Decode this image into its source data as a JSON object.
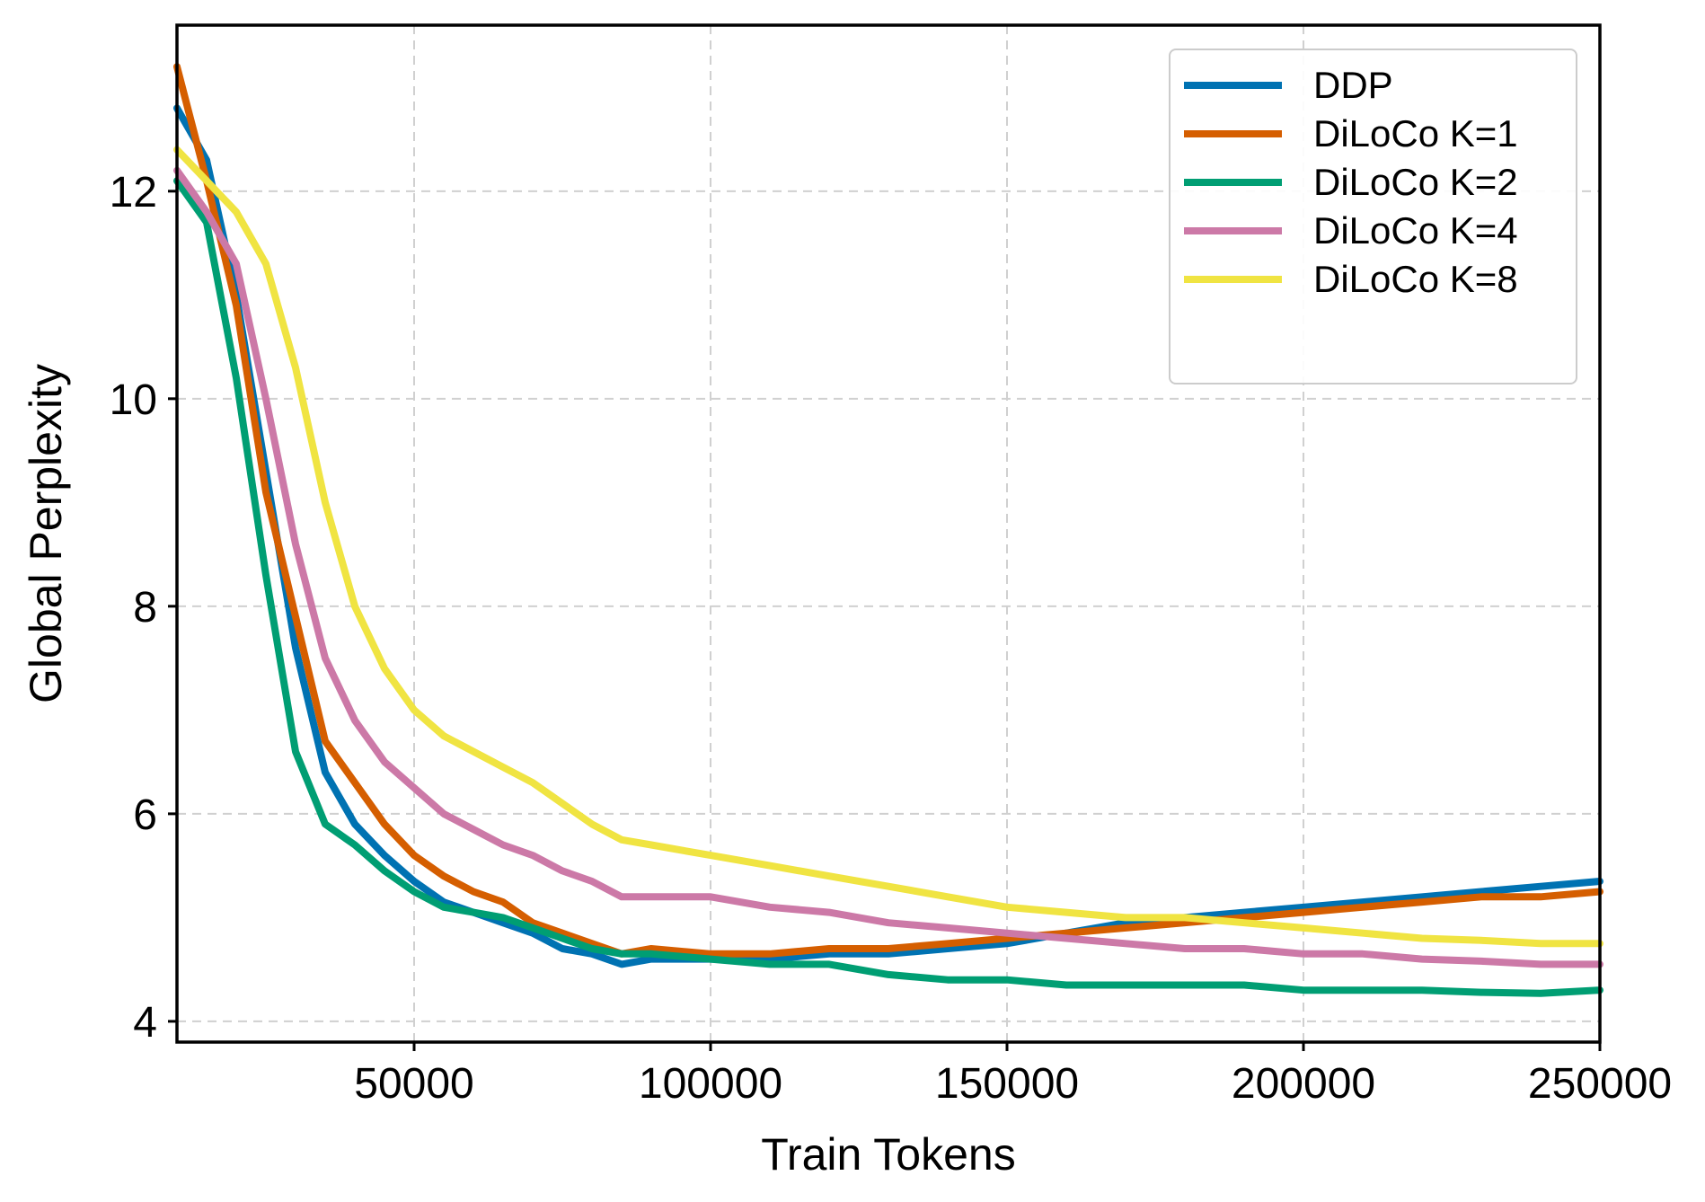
{
  "chart_data": {
    "type": "line",
    "xlabel": "Train Tokens",
    "ylabel": "Global Perplexity",
    "xlim": [
      10000,
      250000
    ],
    "ylim": [
      3.8,
      13.6
    ],
    "xticks": [
      50000,
      100000,
      150000,
      200000,
      250000
    ],
    "yticks": [
      4,
      6,
      8,
      10,
      12
    ],
    "grid": true,
    "legend_position": "top-right",
    "series": [
      {
        "name": "DDP",
        "color": "#0072B2",
        "x": [
          10000,
          15000,
          20000,
          25000,
          30000,
          35000,
          40000,
          45000,
          50000,
          55000,
          60000,
          65000,
          70000,
          75000,
          80000,
          85000,
          90000,
          100000,
          110000,
          120000,
          130000,
          140000,
          150000,
          160000,
          170000,
          180000,
          190000,
          200000,
          210000,
          220000,
          230000,
          240000,
          250000
        ],
        "y": [
          12.8,
          12.3,
          11.0,
          9.3,
          7.6,
          6.4,
          5.9,
          5.6,
          5.35,
          5.15,
          5.05,
          4.95,
          4.85,
          4.7,
          4.65,
          4.55,
          4.6,
          4.6,
          4.6,
          4.65,
          4.65,
          4.7,
          4.75,
          4.85,
          4.95,
          5.0,
          5.05,
          5.1,
          5.15,
          5.2,
          5.25,
          5.3,
          5.35
        ]
      },
      {
        "name": "DiLoCo K=1",
        "color": "#D55E00",
        "x": [
          10000,
          15000,
          20000,
          25000,
          30000,
          35000,
          40000,
          45000,
          50000,
          55000,
          60000,
          65000,
          70000,
          75000,
          80000,
          85000,
          90000,
          100000,
          110000,
          120000,
          130000,
          140000,
          150000,
          160000,
          170000,
          180000,
          190000,
          200000,
          210000,
          220000,
          230000,
          240000,
          250000
        ],
        "y": [
          13.2,
          12.1,
          10.9,
          9.1,
          7.9,
          6.7,
          6.3,
          5.9,
          5.6,
          5.4,
          5.25,
          5.15,
          4.95,
          4.85,
          4.75,
          4.65,
          4.7,
          4.65,
          4.65,
          4.7,
          4.7,
          4.75,
          4.8,
          4.85,
          4.9,
          4.95,
          5.0,
          5.05,
          5.1,
          5.15,
          5.2,
          5.2,
          5.25
        ]
      },
      {
        "name": "DiLoCo K=2",
        "color": "#009E73",
        "x": [
          10000,
          15000,
          20000,
          25000,
          30000,
          35000,
          40000,
          45000,
          50000,
          55000,
          60000,
          65000,
          70000,
          75000,
          80000,
          85000,
          90000,
          100000,
          110000,
          120000,
          130000,
          140000,
          150000,
          160000,
          170000,
          180000,
          190000,
          200000,
          210000,
          220000,
          230000,
          240000,
          250000
        ],
        "y": [
          12.1,
          11.7,
          10.2,
          8.3,
          6.6,
          5.9,
          5.7,
          5.45,
          5.25,
          5.1,
          5.05,
          5.0,
          4.9,
          4.8,
          4.7,
          4.65,
          4.65,
          4.6,
          4.55,
          4.55,
          4.45,
          4.4,
          4.4,
          4.35,
          4.35,
          4.35,
          4.35,
          4.3,
          4.3,
          4.3,
          4.28,
          4.27,
          4.3
        ]
      },
      {
        "name": "DiLoCo K=4",
        "color": "#CC79A7",
        "x": [
          10000,
          15000,
          20000,
          25000,
          30000,
          35000,
          40000,
          45000,
          50000,
          55000,
          60000,
          65000,
          70000,
          75000,
          80000,
          85000,
          90000,
          100000,
          110000,
          120000,
          130000,
          140000,
          150000,
          160000,
          170000,
          180000,
          190000,
          200000,
          210000,
          220000,
          230000,
          240000,
          250000
        ],
        "y": [
          12.2,
          11.8,
          11.3,
          10.0,
          8.6,
          7.5,
          6.9,
          6.5,
          6.25,
          6.0,
          5.85,
          5.7,
          5.6,
          5.45,
          5.35,
          5.2,
          5.2,
          5.2,
          5.1,
          5.05,
          4.95,
          4.9,
          4.85,
          4.8,
          4.75,
          4.7,
          4.7,
          4.65,
          4.65,
          4.6,
          4.58,
          4.55,
          4.55
        ]
      },
      {
        "name": "DiLoCo K=8",
        "color": "#F0E442",
        "x": [
          10000,
          15000,
          20000,
          25000,
          30000,
          35000,
          40000,
          45000,
          50000,
          55000,
          60000,
          65000,
          70000,
          75000,
          80000,
          85000,
          90000,
          100000,
          110000,
          120000,
          130000,
          140000,
          150000,
          160000,
          170000,
          180000,
          190000,
          200000,
          210000,
          220000,
          230000,
          240000,
          250000
        ],
        "y": [
          12.4,
          12.1,
          11.8,
          11.3,
          10.3,
          9.0,
          8.0,
          7.4,
          7.0,
          6.75,
          6.6,
          6.45,
          6.3,
          6.1,
          5.9,
          5.75,
          5.7,
          5.6,
          5.5,
          5.4,
          5.3,
          5.2,
          5.1,
          5.05,
          5.0,
          5.0,
          4.95,
          4.9,
          4.85,
          4.8,
          4.78,
          4.75,
          4.75
        ]
      }
    ]
  }
}
